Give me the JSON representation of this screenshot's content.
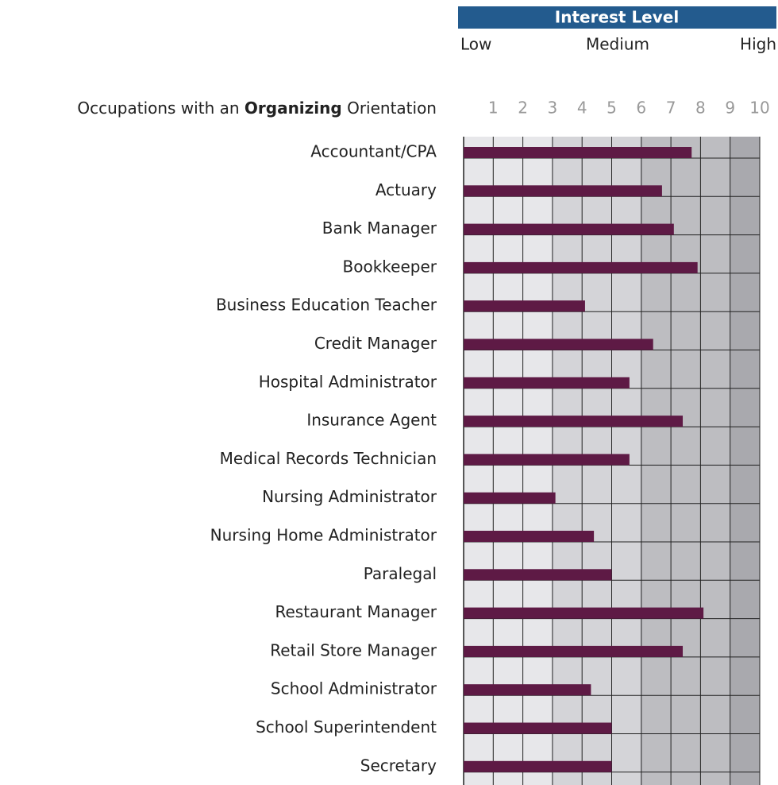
{
  "chart_data": {
    "type": "hbar",
    "header": "Interest Level",
    "scale_labels": [
      "Low",
      "Medium",
      "High"
    ],
    "title_parts": [
      "Occupations with an ",
      "Organizing",
      " Orientation"
    ],
    "categories": [
      "Accountant/CPA",
      "Actuary",
      "Bank Manager",
      "Bookkeeper",
      "Business Education Teacher",
      "Credit Manager",
      "Hospital Administrator",
      "Insurance Agent",
      "Medical Records Technician",
      "Nursing Administrator",
      "Nursing Home Administrator",
      "Paralegal",
      "Restaurant Manager",
      "Retail Store Manager",
      "School Administrator",
      "School Superintendent",
      "Secretary"
    ],
    "values": [
      7.7,
      6.7,
      7.1,
      7.9,
      4.1,
      6.4,
      5.6,
      7.4,
      5.6,
      3.1,
      4.4,
      5.0,
      8.1,
      7.4,
      4.3,
      5.0,
      5.0
    ],
    "color": "#5e1a45",
    "header_color": "#235b8e",
    "xlim": [
      0,
      10
    ],
    "xticks": [
      1,
      2,
      3,
      4,
      5,
      6,
      7,
      8,
      9,
      10
    ],
    "bands": [
      {
        "from": 0,
        "to": 3,
        "color": "#e7e7ea"
      },
      {
        "from": 3,
        "to": 6,
        "color": "#d4d4d8"
      },
      {
        "from": 6,
        "to": 9,
        "color": "#bdbdc1"
      },
      {
        "from": 9,
        "to": 10,
        "color": "#a9a9ae"
      }
    ],
    "grid": true
  }
}
